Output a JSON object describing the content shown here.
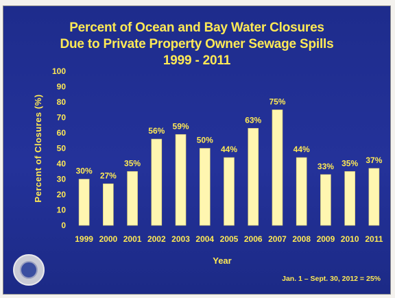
{
  "chart_data": {
    "type": "bar",
    "title_lines": [
      "Percent of Ocean and Bay Water Closures",
      "Due to Private Property Owner Sewage Spills",
      "1999 - 2011"
    ],
    "xlabel": "Year",
    "ylabel": "Percent of Closures (%)",
    "ylim": [
      0,
      100
    ],
    "yticks": [
      0,
      10,
      20,
      30,
      40,
      50,
      60,
      70,
      80,
      90,
      100
    ],
    "categories": [
      "1999",
      "2000",
      "2001",
      "2002",
      "2003",
      "2004",
      "2005",
      "2006",
      "2007",
      "2008",
      "2009",
      "2010",
      "2011"
    ],
    "values": [
      30,
      27,
      35,
      56,
      59,
      50,
      44,
      63,
      75,
      44,
      33,
      35,
      37
    ],
    "data_labels": [
      "30%",
      "27%",
      "35%",
      "56%",
      "59%",
      "50%",
      "44%",
      "63%",
      "75%",
      "44%",
      "33%",
      "35%",
      "37%"
    ],
    "grid": false,
    "bar_color": "#fff6b0",
    "text_color": "#ffea55",
    "background_color": "#1e2c8c"
  },
  "footnote": "Jan. 1 – Sept. 30, 2012 = 25%"
}
